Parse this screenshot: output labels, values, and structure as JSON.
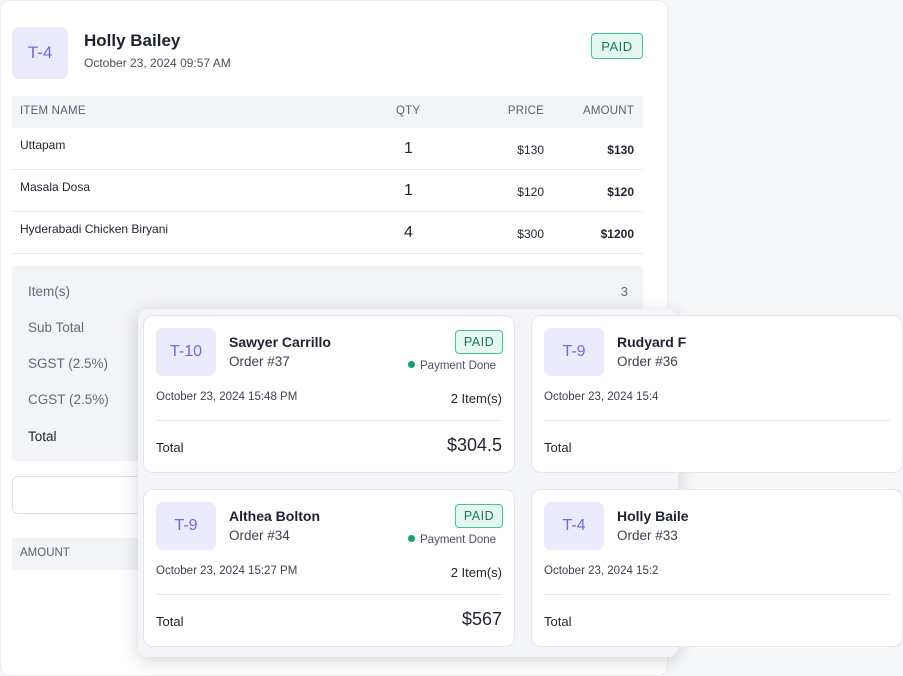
{
  "detail": {
    "table": "T-4",
    "customer": "Holly Bailey",
    "datetime": "October 23, 2024 09:57 AM",
    "status": "PAID",
    "columns": {
      "name": "ITEM NAME",
      "qty": "QTY",
      "price": "PRICE",
      "amount": "AMOUNT"
    },
    "items": [
      {
        "name": "Uttapam",
        "qty": "1",
        "price": "$130",
        "amount": "$130"
      },
      {
        "name": "Masala Dosa",
        "qty": "1",
        "price": "$120",
        "amount": "$120"
      },
      {
        "name": "Hyderabadi Chicken Biryani",
        "qty": "4",
        "price": "$300",
        "amount": "$1200"
      }
    ],
    "summary": {
      "items_label": "Item(s)",
      "items_value": "3",
      "subtotal_label": "Sub Total",
      "sgst_label": "SGST (2.5%)",
      "cgst_label": "CGST (2.5%)",
      "total_label": "Total"
    },
    "lower_head": "AMOUNT"
  },
  "orders": [
    {
      "table": "T-10",
      "name": "Sawyer Carrillo",
      "order": "Order #37",
      "status": "PAID",
      "payment": "Payment Done",
      "datetime": "October 23, 2024 15:48 PM",
      "count": "2 Item(s)",
      "total_label": "Total",
      "total": "$304.5"
    },
    {
      "table": "T-9",
      "name": "Rudyard F",
      "order": "Order #36",
      "status": "",
      "payment": "",
      "datetime": "October 23, 2024 15:4",
      "count": "",
      "total_label": "Total",
      "total": ""
    },
    {
      "table": "T-9",
      "name": "Althea Bolton",
      "order": "Order #34",
      "status": "PAID",
      "payment": "Payment Done",
      "datetime": "October 23, 2024 15:27 PM",
      "count": "2 Item(s)",
      "total_label": "Total",
      "total": "$567"
    },
    {
      "table": "T-4",
      "name": "Holly Baile",
      "order": "Order #33",
      "status": "",
      "payment": "",
      "datetime": "October 23, 2024 15:2",
      "count": "",
      "total_label": "Total",
      "total": ""
    }
  ]
}
